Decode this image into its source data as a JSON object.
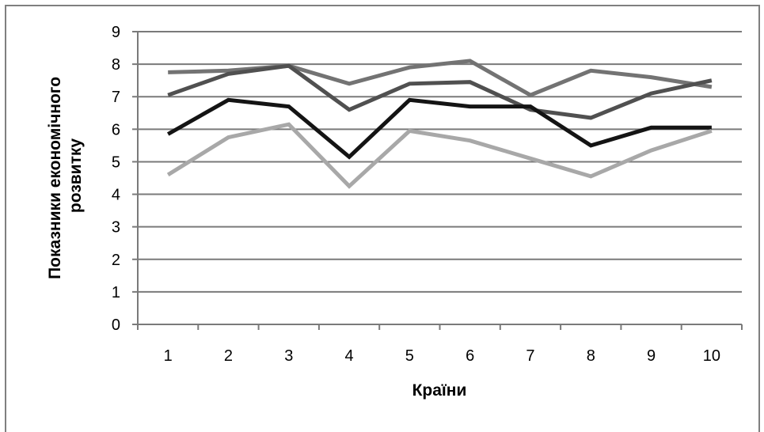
{
  "chart_data": {
    "type": "line",
    "xlabel": "Країни",
    "ylabel": "Показники економічного розвитку",
    "ylabel_lines": [
      "Показники економічного",
      "розвитку"
    ],
    "categories": [
      "1",
      "2",
      "3",
      "4",
      "5",
      "6",
      "7",
      "8",
      "9",
      "10"
    ],
    "ylim": [
      0,
      9
    ],
    "yticks": [
      0,
      1,
      2,
      3,
      4,
      5,
      6,
      7,
      8,
      9
    ],
    "grid": true,
    "legend": "none",
    "series": [
      {
        "color": "#737373",
        "values": [
          7.75,
          7.8,
          7.95,
          7.4,
          7.9,
          8.1,
          7.05,
          7.8,
          7.6,
          7.3
        ]
      },
      {
        "color": "#505050",
        "values": [
          7.05,
          7.7,
          7.95,
          6.6,
          7.4,
          7.45,
          6.6,
          6.35,
          7.1,
          7.5
        ]
      },
      {
        "color": "#141414",
        "values": [
          5.85,
          6.9,
          6.7,
          5.15,
          6.9,
          6.7,
          6.7,
          5.5,
          6.05,
          6.05
        ]
      },
      {
        "color": "#a8a8a8",
        "values": [
          4.6,
          5.75,
          6.15,
          4.25,
          5.95,
          5.65,
          5.1,
          4.55,
          5.35,
          5.95
        ]
      }
    ]
  }
}
